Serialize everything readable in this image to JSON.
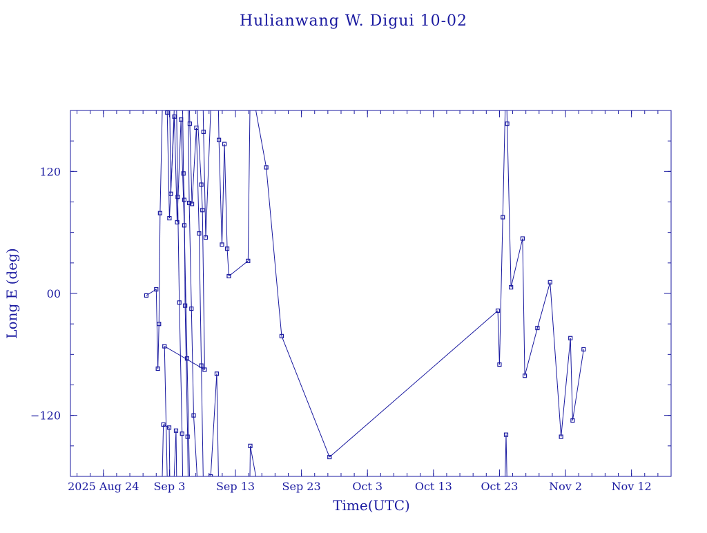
{
  "chart_data": {
    "type": "scatter",
    "title": "Hulianwang W. Digui 10-02",
    "xlabel": "Time(UTC)",
    "ylabel": "Long E (deg)",
    "x_tick_labels": [
      "2025 Aug 24",
      "Sep  3",
      "Sep 13",
      "Sep 23",
      "Oct  3",
      "Oct 13",
      "Oct 23",
      "Nov  2",
      "Nov 12"
    ],
    "x_tick_dates": [
      "2025-08-24",
      "2025-09-03",
      "2025-09-13",
      "2025-09-23",
      "2025-10-03",
      "2025-10-13",
      "2025-10-23",
      "2025-11-02",
      "2025-11-12"
    ],
    "xlim": [
      "2025-08-19",
      "2025-11-18"
    ],
    "y_tick_labels": [
      "120",
      "00",
      "−120"
    ],
    "y_ticks": [
      120,
      0,
      -120
    ],
    "ylim": [
      -180,
      180
    ],
    "wrap_longitude": true,
    "grid": false,
    "color": "#1a1aa0",
    "series": [
      {
        "points": [
          [
            "2025-08-30 12:00",
            -2
          ],
          [
            "2025-08-32 00:00",
            4
          ],
          [
            "2025-08-32 06:00",
            -74
          ],
          [
            "2025-08-32 10:00",
            -30
          ],
          [
            "2025-08-32 14:00",
            79
          ],
          [
            "2025-08-33 02:00",
            -129
          ],
          [
            "2025-08-33 23:00",
            -132
          ],
          [
            "2025-08-34 05:00",
            98
          ],
          [
            "2025-08-35 00:00",
            -135
          ],
          [
            "2025-08-35 06:00",
            95
          ],
          [
            "2025-08-35 12:00",
            -9
          ],
          [
            "2025-08-35 22:00",
            -138
          ],
          [
            "2025-08-36 03:00",
            118
          ],
          [
            "2025-08-36 06:00",
            92
          ],
          [
            "2025-08-36 09:00",
            -12
          ],
          [
            "2025-08-36 18:00",
            -141
          ],
          [
            "2025-08-37 00:00",
            89
          ],
          [
            "2025-08-37 08:00",
            -15
          ],
          [
            "2025-08-37 16:00",
            -120
          ],
          [
            "2025-08-38 20:00",
            107
          ],
          [
            "2025-08-39 00:00",
            82
          ],
          [
            "2025-08-39 08:00",
            -75
          ],
          [
            "2025-09-02 06:00",
            -52
          ],
          [
            "2025-09-02 16:00",
            178
          ],
          [
            "2025-09-03 00:00",
            74
          ],
          [
            "2025-09-03 18:00",
            174
          ],
          [
            "2025-09-04 04:00",
            70
          ],
          [
            "2025-09-04 18:00",
            171
          ],
          [
            "2025-09-05 06:00",
            67
          ],
          [
            "2025-09-05 16:00",
            -64
          ],
          [
            "2025-09-06 02:00",
            167
          ],
          [
            "2025-09-06 10:00",
            88
          ],
          [
            "2025-09-07 02:00",
            163
          ],
          [
            "2025-09-07 12:00",
            59
          ],
          [
            "2025-09-07 20:00",
            -71
          ],
          [
            "2025-09-08 04:00",
            159
          ],
          [
            "2025-09-08 12:00",
            55
          ],
          [
            "2025-09-09 06:00",
            -180
          ],
          [
            "2025-09-10 04:00",
            -79
          ],
          [
            "2025-09-10 12:00",
            151
          ],
          [
            "2025-09-10 23:00",
            48
          ],
          [
            "2025-09-11 08:00",
            147
          ],
          [
            "2025-09-11 18:00",
            44
          ],
          [
            "2025-09-12 00:00",
            17
          ],
          [
            "2025-09-14 22:00",
            32
          ],
          [
            "2025-09-15 06:00",
            -150
          ],
          [
            "2025-09-17 16:00",
            124
          ],
          [
            "2025-09-20 00:00",
            -42
          ],
          [
            "2025-09-27 06:00",
            -161
          ],
          [
            "2025-10-22 18:00",
            -17
          ],
          [
            "2025-10-23 00:00",
            -70
          ],
          [
            "2025-10-23 12:00",
            75
          ],
          [
            "2025-10-24 00:00",
            -139
          ],
          [
            "2025-10-24 04:00",
            167
          ],
          [
            "2025-10-24 18:00",
            6
          ],
          [
            "2025-10-26 12:00",
            54
          ],
          [
            "2025-10-26 20:00",
            -81
          ],
          [
            "2025-10-28 18:00",
            -34
          ],
          [
            "2025-10-30 16:00",
            11
          ],
          [
            "2025-11-01 08:00",
            -141
          ],
          [
            "2025-11-02 18:00",
            -44
          ],
          [
            "2025-11-03 02:00",
            -125
          ],
          [
            "2025-11-04 18:00",
            -55
          ]
        ]
      }
    ]
  }
}
